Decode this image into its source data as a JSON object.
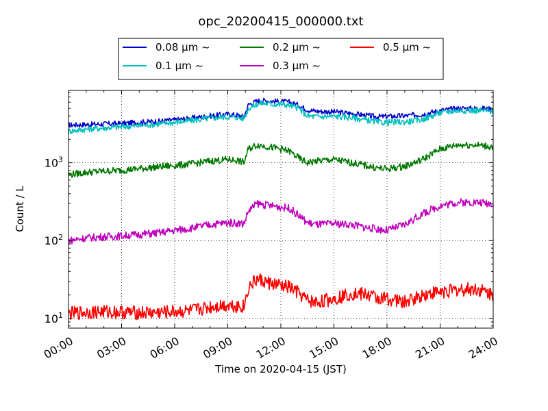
{
  "chart_data": {
    "type": "line",
    "title": "opc_20200415_000000.txt",
    "xlabel": "Time on 2020-04-15 (JST)",
    "ylabel": "Count / L",
    "yscale": "log",
    "xlim": [
      "00:00",
      "24:00"
    ],
    "ylim": [
      7.5,
      8500
    ],
    "grid": true,
    "legend_position": "top-center",
    "x_ticks": [
      "00:00",
      "03:00",
      "06:00",
      "09:00",
      "12:00",
      "15:00",
      "18:00",
      "21:00",
      "24:00"
    ],
    "y_ticks": [
      {
        "value": 10,
        "label": "10",
        "exp": "1"
      },
      {
        "value": 100,
        "label": "10",
        "exp": "2"
      },
      {
        "value": 1000,
        "label": "10",
        "exp": "3"
      }
    ],
    "x": [
      "00:00",
      "01:00",
      "02:00",
      "03:00",
      "04:00",
      "05:00",
      "06:00",
      "07:00",
      "08:00",
      "09:00",
      "09:30",
      "09:55",
      "10:10",
      "10:40",
      "11:00",
      "12:00",
      "12:30",
      "13:00",
      "13:30",
      "14:00",
      "15:00",
      "16:00",
      "17:00",
      "17:30",
      "18:00",
      "19:00",
      "20:00",
      "21:00",
      "22:00",
      "23:00",
      "24:00"
    ],
    "series": [
      {
        "name": "0.08 μm ~",
        "color": "#0000cc",
        "values": [
          3050,
          3100,
          3150,
          3200,
          3300,
          3400,
          3550,
          3750,
          4000,
          4200,
          4100,
          3900,
          5600,
          6200,
          6300,
          6100,
          6000,
          5500,
          4800,
          4600,
          4500,
          4300,
          4000,
          3900,
          3950,
          4000,
          4200,
          4700,
          5000,
          5000,
          4900
        ]
      },
      {
        "name": "0.1 μm ~",
        "color": "#00bfbf",
        "values": [
          2550,
          2700,
          2800,
          2900,
          3000,
          3150,
          3300,
          3500,
          3750,
          3900,
          3850,
          3700,
          5000,
          5700,
          5800,
          5600,
          5500,
          5000,
          4000,
          3900,
          3950,
          3800,
          3500,
          3300,
          3300,
          3350,
          3600,
          4400,
          4700,
          4700,
          4600
        ]
      },
      {
        "name": "0.2 μm ~",
        "color": "#007700",
        "values": [
          700,
          750,
          780,
          800,
          840,
          880,
          920,
          970,
          1050,
          1100,
          1080,
          1000,
          1500,
          1700,
          1650,
          1500,
          1400,
          1150,
          1000,
          1050,
          1100,
          1000,
          900,
          850,
          830,
          900,
          1100,
          1500,
          1700,
          1700,
          1600
        ]
      },
      {
        "name": "0.3 μm ~",
        "color": "#bf00bf",
        "values": [
          100,
          108,
          112,
          115,
          120,
          125,
          135,
          145,
          160,
          170,
          168,
          165,
          240,
          300,
          290,
          270,
          260,
          210,
          170,
          160,
          165,
          160,
          145,
          140,
          135,
          160,
          220,
          280,
          310,
          310,
          300
        ]
      },
      {
        "name": "0.5 μm ~",
        "color": "#ff0000",
        "values": [
          11.5,
          12,
          12.2,
          12,
          11.8,
          11.8,
          12.2,
          12.5,
          14,
          15,
          14.5,
          14.2,
          25,
          32,
          30,
          26,
          25,
          21,
          17,
          16,
          18,
          21,
          20,
          18,
          18,
          16,
          20,
          22,
          23,
          24,
          20
        ]
      }
    ]
  }
}
